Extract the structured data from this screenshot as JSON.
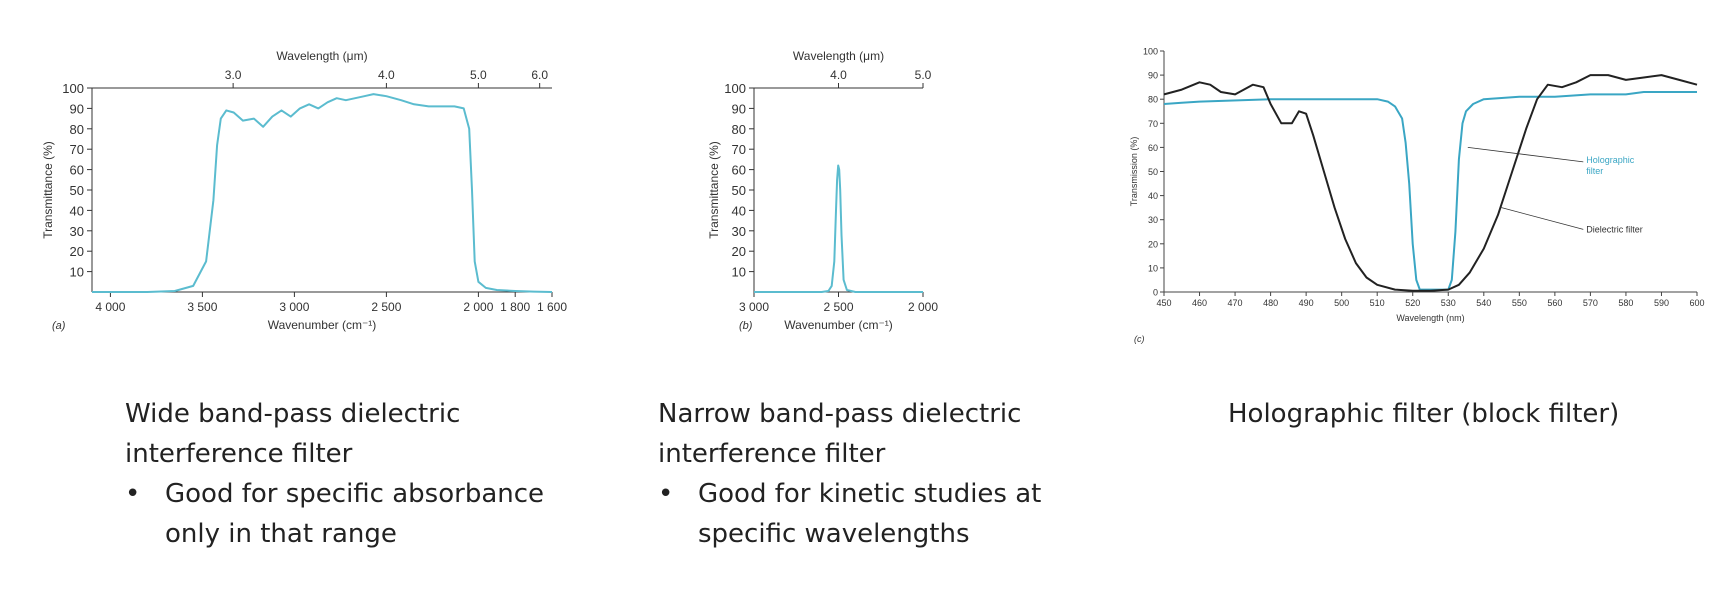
{
  "chart_data": [
    {
      "id": "a",
      "type": "line",
      "panel_label": "(a)",
      "xlabel": "Wavenumber (cm⁻¹)",
      "ylabel": "Transmittance (%)",
      "top_axis_label": "Wavelength (μm)",
      "x_reversed": true,
      "xlim": [
        4100,
        1600
      ],
      "ylim": [
        0,
        100
      ],
      "x_ticks": [
        {
          "value": 4000,
          "label": "4 000"
        },
        {
          "value": 3500,
          "label": "3 500"
        },
        {
          "value": 3000,
          "label": "3 000"
        },
        {
          "value": 2500,
          "label": "2 500"
        },
        {
          "value": 2000,
          "label": "2 000"
        },
        {
          "value": 1800,
          "label": "1 800"
        },
        {
          "value": 1600,
          "label": "1 600"
        }
      ],
      "top_ticks": [
        {
          "wavenumber": 3333,
          "label": "3.0"
        },
        {
          "wavenumber": 2500,
          "label": "4.0"
        },
        {
          "wavenumber": 2000,
          "label": "5.0"
        },
        {
          "wavenumber": 1667,
          "label": "6.0"
        }
      ],
      "y_ticks": [
        10,
        20,
        30,
        40,
        50,
        60,
        70,
        80,
        90,
        100
      ],
      "color": "#5bbccf",
      "series": [
        {
          "x": [
            4100,
            3800,
            3650,
            3550,
            3480,
            3440,
            3420,
            3400,
            3370,
            3330,
            3280,
            3220,
            3170,
            3120,
            3070,
            3020,
            2970,
            2920,
            2870,
            2820,
            2770,
            2720,
            2670,
            2620,
            2570,
            2500,
            2420,
            2350,
            2270,
            2200,
            2130,
            2080,
            2050,
            2035,
            2020,
            2000,
            1960,
            1900,
            1800,
            1700,
            1600
          ],
          "y": [
            0,
            0,
            0.5,
            3,
            15,
            45,
            72,
            85,
            89,
            88,
            84,
            85,
            81,
            86,
            89,
            86,
            90,
            92,
            90,
            93,
            95,
            94,
            95,
            96,
            97,
            96,
            94,
            92,
            91,
            91,
            91,
            90,
            80,
            50,
            15,
            5,
            2,
            1,
            0.5,
            0.2,
            0
          ]
        }
      ]
    },
    {
      "id": "b",
      "type": "line",
      "panel_label": "(b)",
      "xlabel": "Wavenumber (cm⁻¹)",
      "ylabel": "Transmittance (%)",
      "top_axis_label": "Wavelength (μm)",
      "x_reversed": true,
      "xlim": [
        3000,
        2000
      ],
      "ylim": [
        0,
        100
      ],
      "x_ticks": [
        {
          "value": 3000,
          "label": "3 000"
        },
        {
          "value": 2500,
          "label": "2 500"
        },
        {
          "value": 2000,
          "label": "2 000"
        }
      ],
      "top_ticks": [
        {
          "wavenumber": 2500,
          "label": "4.0"
        },
        {
          "wavenumber": 2000,
          "label": "5.0"
        }
      ],
      "y_ticks": [
        10,
        20,
        30,
        40,
        50,
        60,
        70,
        80,
        90,
        100
      ],
      "color": "#5bbccf",
      "series": [
        {
          "x": [
            3000,
            2600,
            2560,
            2540,
            2525,
            2515,
            2508,
            2502,
            2496,
            2490,
            2482,
            2470,
            2450,
            2400,
            2000
          ],
          "y": [
            0,
            0,
            0.5,
            3,
            15,
            40,
            55,
            62,
            60,
            50,
            28,
            6,
            1,
            0,
            0
          ]
        }
      ]
    },
    {
      "id": "c",
      "type": "line",
      "panel_label": "(c)",
      "xlabel": "Wavelength (nm)",
      "ylabel": "Transmission (%)",
      "xlim": [
        450,
        600
      ],
      "ylim": [
        0,
        100
      ],
      "x_ticks": [
        450,
        460,
        470,
        480,
        490,
        500,
        510,
        520,
        530,
        540,
        550,
        560,
        570,
        580,
        590,
        600
      ],
      "y_ticks": [
        0,
        10,
        20,
        30,
        40,
        50,
        60,
        70,
        80,
        90,
        100
      ],
      "series": [
        {
          "name": "Holographic filter",
          "color": "#3aa6c4",
          "x": [
            450,
            455,
            460,
            480,
            500,
            510,
            513,
            515,
            517,
            518,
            519,
            520,
            521,
            522,
            530,
            531,
            532,
            533,
            534,
            535,
            537,
            540,
            545,
            550,
            560,
            570,
            580,
            585,
            590,
            600
          ],
          "y": [
            78,
            78.5,
            79,
            80,
            80,
            80,
            79,
            77,
            72,
            62,
            45,
            20,
            5,
            1,
            1,
            5,
            25,
            55,
            70,
            75,
            78,
            80,
            80.5,
            81,
            81,
            82,
            82,
            83,
            83,
            83
          ]
        },
        {
          "name": "Dielectric filter",
          "color": "#222222",
          "x": [
            450,
            455,
            460,
            463,
            466,
            470,
            475,
            478,
            480,
            483,
            486,
            488,
            490,
            492,
            495,
            498,
            501,
            504,
            507,
            510,
            515,
            520,
            525,
            530,
            533,
            536,
            540,
            544,
            548,
            552,
            555,
            558,
            562,
            566,
            570,
            575,
            580,
            585,
            590,
            595,
            600
          ],
          "y": [
            82,
            84,
            87,
            86,
            83,
            82,
            86,
            85,
            78,
            70,
            70,
            75,
            74,
            65,
            50,
            35,
            22,
            12,
            6,
            3,
            1,
            0.5,
            0.5,
            1,
            3,
            8,
            18,
            32,
            50,
            68,
            80,
            86,
            85,
            87,
            90,
            90,
            88,
            89,
            90,
            88,
            86
          ]
        }
      ]
    }
  ],
  "captions": {
    "a": {
      "title": "Wide band-pass dielectric interference filter",
      "bullets": [
        "Good for specific absorbance only in that range"
      ]
    },
    "b": {
      "title": "Narrow band-pass dielectric interference filter",
      "bullets": [
        "Good for kinetic studies at specific wavelengths"
      ]
    },
    "c": {
      "title": "Holographic filter (block filter)"
    }
  }
}
